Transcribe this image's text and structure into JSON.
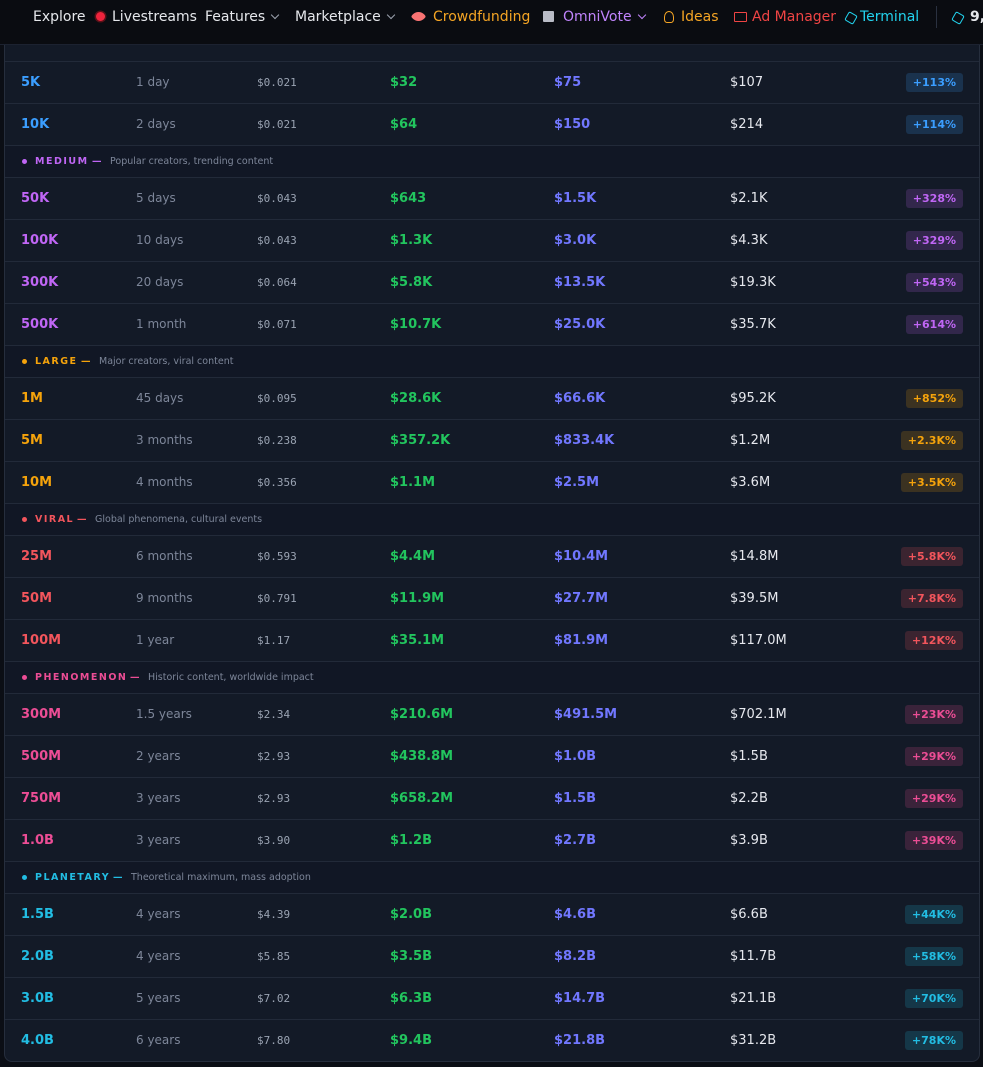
{
  "nav": [
    {
      "label": "Explore"
    },
    {
      "label": "Livestreams"
    },
    {
      "label": "Features"
    },
    {
      "label": "Marketplace"
    },
    {
      "label": "Crowdfunding"
    },
    {
      "label": "OmniVote"
    },
    {
      "label": "Ideas"
    },
    {
      "label": "Ad Manager"
    },
    {
      "label": "Terminal"
    }
  ],
  "balance": "9,",
  "table": {
    "groups": [
      {
        "color": "#3b9eff",
        "rows": [
          [
            "5K",
            "1 day",
            "$0.021",
            "$32",
            "$75",
            "$107",
            "+113%"
          ],
          [
            "10K",
            "2 days",
            "$0.021",
            "$64",
            "$150",
            "$214",
            "+114%"
          ]
        ]
      },
      {
        "name": "MEDIUM",
        "desc": "Popular creators, trending content",
        "color": "#c066f5",
        "rows": [
          [
            "50K",
            "5 days",
            "$0.043",
            "$643",
            "$1.5K",
            "$2.1K",
            "+328%"
          ],
          [
            "100K",
            "10 days",
            "$0.043",
            "$1.3K",
            "$3.0K",
            "$4.3K",
            "+329%"
          ],
          [
            "300K",
            "20 days",
            "$0.064",
            "$5.8K",
            "$13.5K",
            "$19.3K",
            "+543%"
          ],
          [
            "500K",
            "1 month",
            "$0.071",
            "$10.7K",
            "$25.0K",
            "$35.7K",
            "+614%"
          ]
        ]
      },
      {
        "name": "LARGE",
        "desc": "Major creators, viral content",
        "color": "#f5a30b",
        "rows": [
          [
            "1M",
            "45 days",
            "$0.095",
            "$28.6K",
            "$66.6K",
            "$95.2K",
            "+852%"
          ],
          [
            "5M",
            "3 months",
            "$0.238",
            "$357.2K",
            "$833.4K",
            "$1.2M",
            "+2.3K%"
          ],
          [
            "10M",
            "4 months",
            "$0.356",
            "$1.1M",
            "$2.5M",
            "$3.6M",
            "+3.5K%"
          ]
        ]
      },
      {
        "name": "VIRAL",
        "desc": "Global phenomena, cultural events",
        "color": "#f2555c",
        "rows": [
          [
            "25M",
            "6 months",
            "$0.593",
            "$4.4M",
            "$10.4M",
            "$14.8M",
            "+5.8K%"
          ],
          [
            "50M",
            "9 months",
            "$0.791",
            "$11.9M",
            "$27.7M",
            "$39.5M",
            "+7.8K%"
          ],
          [
            "100M",
            "1 year",
            "$1.17",
            "$35.1M",
            "$81.9M",
            "$117.0M",
            "+12K%"
          ]
        ]
      },
      {
        "name": "PHENOMENON",
        "desc": "Historic content, worldwide impact",
        "color": "#ec4d95",
        "rows": [
          [
            "300M",
            "1.5 years",
            "$2.34",
            "$210.6M",
            "$491.5M",
            "$702.1M",
            "+23K%"
          ],
          [
            "500M",
            "2 years",
            "$2.93",
            "$438.8M",
            "$1.0B",
            "$1.5B",
            "+29K%"
          ],
          [
            "750M",
            "3 years",
            "$2.93",
            "$658.2M",
            "$1.5B",
            "$2.2B",
            "+29K%"
          ],
          [
            "1.0B",
            "3 years",
            "$3.90",
            "$1.2B",
            "$2.7B",
            "$3.9B",
            "+39K%"
          ]
        ]
      },
      {
        "name": "PLANETARY",
        "desc": "Theoretical maximum, mass adoption",
        "color": "#22bde3",
        "rows": [
          [
            "1.5B",
            "4 years",
            "$4.39",
            "$2.0B",
            "$4.6B",
            "$6.6B",
            "+44K%"
          ],
          [
            "2.0B",
            "4 years",
            "$5.85",
            "$3.5B",
            "$8.2B",
            "$11.7B",
            "+58K%"
          ],
          [
            "3.0B",
            "5 years",
            "$7.02",
            "$6.3B",
            "$14.7B",
            "$21.1B",
            "+70K%"
          ],
          [
            "4.0B",
            "6 years",
            "$7.80",
            "$9.4B",
            "$21.8B",
            "$31.2B",
            "+78K%"
          ]
        ]
      }
    ]
  }
}
